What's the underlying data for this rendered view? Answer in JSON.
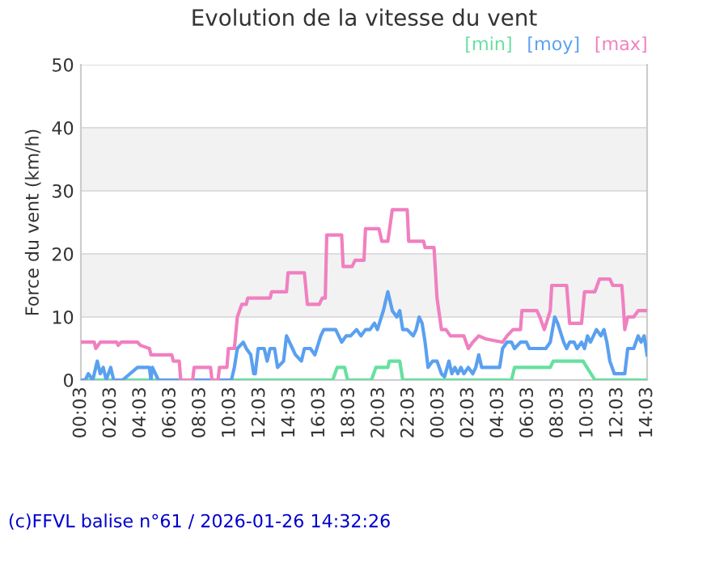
{
  "chart_data": {
    "type": "line",
    "title": "Evolution de la vitesse du vent",
    "ylabel": "Force du vent (km/h)",
    "annotations": [
      "(c)FFVL balise n°61 / 2026-01-26 14:32:26"
    ],
    "xlim": [
      "2026-01-25T00:03",
      "2026-01-26T14:03"
    ],
    "xticks": [
      {
        "value": "2026-01-25T00:03",
        "label": "00:03"
      },
      {
        "value": "2026-01-25T02:03",
        "label": "02:03"
      },
      {
        "value": "2026-01-25T04:03",
        "label": "04:03"
      },
      {
        "value": "2026-01-25T06:03",
        "label": "06:03"
      },
      {
        "value": "2026-01-25T08:03",
        "label": "08:03"
      },
      {
        "value": "2026-01-25T10:03",
        "label": "10:03"
      },
      {
        "value": "2026-01-25T12:03",
        "label": "12:03"
      },
      {
        "value": "2026-01-25T14:03",
        "label": "14:03"
      },
      {
        "value": "2026-01-25T16:03",
        "label": "16:03"
      },
      {
        "value": "2026-01-25T18:03",
        "label": "18:03"
      },
      {
        "value": "2026-01-25T20:03",
        "label": "20:03"
      },
      {
        "value": "2026-01-25T22:03",
        "label": "22:03"
      },
      {
        "value": "2026-01-26T00:03",
        "label": "00:03"
      },
      {
        "value": "2026-01-26T02:03",
        "label": "02:03"
      },
      {
        "value": "2026-01-26T04:03",
        "label": "04:03"
      },
      {
        "value": "2026-01-26T06:03",
        "label": "06:03"
      },
      {
        "value": "2026-01-26T08:03",
        "label": "08:03"
      },
      {
        "value": "2026-01-26T10:03",
        "label": "10:03"
      },
      {
        "value": "2026-01-26T12:03",
        "label": "12:03"
      },
      {
        "value": "2026-01-26T14:03",
        "label": "14:03"
      }
    ],
    "ylim": [
      0,
      50
    ],
    "yticks": [
      0,
      10,
      20,
      30,
      40,
      50
    ],
    "grid": "y",
    "legend": "top right",
    "bands": [
      {
        "axis": "y",
        "from": 10,
        "to": 20,
        "color": "#f2f2f2"
      },
      {
        "axis": "y",
        "from": 30,
        "to": 40,
        "color": "#f2f2f2"
      }
    ],
    "series": [
      {
        "name": "[min]",
        "color": "#66e0a0",
        "x": [
          "2026-01-25T00:03",
          "2026-01-25T16:57",
          "2026-01-25T17:15",
          "2026-01-25T17:45",
          "2026-01-25T17:57",
          "2026-01-25T19:33",
          "2026-01-25T19:51",
          "2026-01-25T20:39",
          "2026-01-25T20:45",
          "2026-01-25T21:27",
          "2026-01-25T21:39",
          "2026-01-26T04:57",
          "2026-01-26T05:09",
          "2026-01-26T07:33",
          "2026-01-26T07:45",
          "2026-01-26T09:45",
          "2026-01-26T10:33",
          "2026-01-26T14:03"
        ],
        "values": [
          0,
          0,
          2,
          2,
          0,
          0,
          2,
          2,
          3,
          3,
          0,
          0,
          2,
          2,
          3,
          3,
          0,
          0
        ]
      },
      {
        "name": "[moy]",
        "color": "#5aa0f0",
        "x": [
          "2026-01-25T00:03",
          "2026-01-25T00:21",
          "2026-01-25T00:33",
          "2026-01-25T00:51",
          "2026-01-25T01:09",
          "2026-01-25T01:21",
          "2026-01-25T01:33",
          "2026-01-25T01:45",
          "2026-01-25T02:03",
          "2026-01-25T02:15",
          "2026-01-25T02:51",
          "2026-01-25T03:51",
          "2026-01-25T04:39",
          "2026-01-25T04:45",
          "2026-01-25T04:51",
          "2026-01-25T05:03",
          "2026-01-25T05:15",
          "2026-01-25T10:09",
          "2026-01-25T10:21",
          "2026-01-25T10:33",
          "2026-01-25T10:57",
          "2026-01-25T11:09",
          "2026-01-25T11:27",
          "2026-01-25T11:39",
          "2026-01-25T11:45",
          "2026-01-25T11:57",
          "2026-01-25T12:21",
          "2026-01-25T12:33",
          "2026-01-25T12:45",
          "2026-01-25T13:03",
          "2026-01-25T13:15",
          "2026-01-25T13:39",
          "2026-01-25T13:51",
          "2026-01-25T14:03",
          "2026-01-25T14:15",
          "2026-01-25T14:27",
          "2026-01-25T14:51",
          "2026-01-25T15:03",
          "2026-01-25T15:27",
          "2026-01-25T15:45",
          "2026-01-25T16:09",
          "2026-01-25T16:21",
          "2026-01-25T17:09",
          "2026-01-25T17:21",
          "2026-01-25T17:33",
          "2026-01-25T17:51",
          "2026-01-25T18:09",
          "2026-01-25T18:33",
          "2026-01-25T18:51",
          "2026-01-25T19:09",
          "2026-01-25T19:27",
          "2026-01-25T19:45",
          "2026-01-25T19:57",
          "2026-01-25T20:21",
          "2026-01-25T20:39",
          "2026-01-25T20:57",
          "2026-01-25T21:15",
          "2026-01-25T21:27",
          "2026-01-25T21:39",
          "2026-01-25T21:57",
          "2026-01-25T22:21",
          "2026-01-25T22:33",
          "2026-01-25T22:45",
          "2026-01-25T22:57",
          "2026-01-25T23:09",
          "2026-01-25T23:21",
          "2026-01-25T23:39",
          "2026-01-25T23:57",
          "2026-01-26T00:15",
          "2026-01-26T00:27",
          "2026-01-26T00:45",
          "2026-01-26T00:57",
          "2026-01-26T01:09",
          "2026-01-26T01:21",
          "2026-01-26T01:33",
          "2026-01-26T01:45",
          "2026-01-26T02:03",
          "2026-01-26T02:21",
          "2026-01-26T02:33",
          "2026-01-26T02:45",
          "2026-01-26T02:57",
          "2026-01-26T04:09",
          "2026-01-26T04:21",
          "2026-01-26T04:39",
          "2026-01-26T04:57",
          "2026-01-26T05:09",
          "2026-01-26T05:33",
          "2026-01-26T05:57",
          "2026-01-26T06:09",
          "2026-01-26T07:15",
          "2026-01-26T07:33",
          "2026-01-26T07:51",
          "2026-01-26T08:03",
          "2026-01-26T08:27",
          "2026-01-26T08:39",
          "2026-01-26T08:51",
          "2026-01-26T09:09",
          "2026-01-26T09:21",
          "2026-01-26T09:39",
          "2026-01-26T09:51",
          "2026-01-26T10:03",
          "2026-01-26T10:15",
          "2026-01-26T10:27",
          "2026-01-26T10:39",
          "2026-01-26T10:57",
          "2026-01-26T11:09",
          "2026-01-26T11:21",
          "2026-01-26T11:33",
          "2026-01-26T11:51",
          "2026-01-26T12:33",
          "2026-01-26T12:45",
          "2026-01-26T13:09",
          "2026-01-26T13:27",
          "2026-01-26T13:39",
          "2026-01-26T13:51",
          "2026-01-26T14:03"
        ],
        "values": [
          0,
          0,
          1,
          0,
          3,
          1,
          2,
          0,
          2,
          0,
          0,
          2,
          2,
          0,
          2,
          1,
          0,
          0,
          2,
          5,
          6,
          5,
          4,
          1,
          1,
          5,
          5,
          3,
          5,
          5,
          2,
          3,
          7,
          6,
          5,
          4,
          3,
          5,
          5,
          4,
          7,
          8,
          8,
          7,
          6,
          7,
          7,
          8,
          7,
          8,
          8,
          9,
          8,
          11,
          14,
          11,
          10,
          11,
          8,
          8,
          7,
          8,
          10,
          9,
          6,
          2,
          3,
          3,
          1,
          0.5,
          3,
          1,
          2,
          1,
          2,
          1,
          2,
          1,
          2,
          4,
          2,
          2,
          5,
          6,
          6,
          5,
          6,
          6,
          5,
          5,
          6,
          10,
          9,
          6,
          5,
          6,
          6,
          5,
          6,
          5,
          7,
          6,
          7,
          8,
          7,
          8,
          6,
          3,
          1,
          1,
          5,
          5,
          7,
          6,
          7,
          4
        ]
      },
      {
        "name": "[max]",
        "color": "#f080c0",
        "x": [
          "2026-01-25T00:03",
          "2026-01-25T00:57",
          "2026-01-25T01:03",
          "2026-01-25T01:21",
          "2026-01-25T02:27",
          "2026-01-25T02:33",
          "2026-01-25T02:45",
          "2026-01-25T03:51",
          "2026-01-25T04:03",
          "2026-01-25T04:39",
          "2026-01-25T04:45",
          "2026-01-25T06:09",
          "2026-01-25T06:15",
          "2026-01-25T06:39",
          "2026-01-25T06:45",
          "2026-01-25T07:33",
          "2026-01-25T07:39",
          "2026-01-25T08:45",
          "2026-01-25T08:51",
          "2026-01-25T09:15",
          "2026-01-25T09:21",
          "2026-01-25T09:51",
          "2026-01-25T09:57",
          "2026-01-25T10:21",
          "2026-01-25T10:33",
          "2026-01-25T10:51",
          "2026-01-25T11:09",
          "2026-01-25T11:15",
          "2026-01-25T12:45",
          "2026-01-25T12:51",
          "2026-01-25T13:51",
          "2026-01-25T13:57",
          "2026-01-25T15:03",
          "2026-01-25T15:15",
          "2026-01-25T16:03",
          "2026-01-25T16:15",
          "2026-01-25T16:27",
          "2026-01-25T16:33",
          "2026-01-25T17:33",
          "2026-01-25T17:39",
          "2026-01-25T18:15",
          "2026-01-25T18:27",
          "2026-01-25T19:03",
          "2026-01-25T19:09",
          "2026-01-25T20:03",
          "2026-01-25T20:15",
          "2026-01-25T20:39",
          "2026-01-25T20:57",
          "2026-01-25T21:57",
          "2026-01-25T22:03",
          "2026-01-25T23:03",
          "2026-01-25T23:09",
          "2026-01-25T23:45",
          "2026-01-25T23:57",
          "2026-01-26T00:15",
          "2026-01-26T00:33",
          "2026-01-26T00:51",
          "2026-01-26T01:45",
          "2026-01-26T02:03",
          "2026-01-26T02:21",
          "2026-01-26T02:45",
          "2026-01-26T03:15",
          "2026-01-26T04:21",
          "2026-01-26T04:39",
          "2026-01-26T05:03",
          "2026-01-26T05:33",
          "2026-01-26T05:39",
          "2026-01-26T06:39",
          "2026-01-26T06:51",
          "2026-01-26T07:09",
          "2026-01-26T07:33",
          "2026-01-26T07:39",
          "2026-01-26T08:39",
          "2026-01-26T08:51",
          "2026-01-26T09:39",
          "2026-01-26T09:51",
          "2026-01-26T10:33",
          "2026-01-26T10:51",
          "2026-01-26T11:33",
          "2026-01-26T11:45",
          "2026-01-26T12:21",
          "2026-01-26T12:27",
          "2026-01-26T12:33",
          "2026-01-26T12:45",
          "2026-01-26T13:09",
          "2026-01-26T13:27",
          "2026-01-26T14:03"
        ],
        "values": [
          6,
          6,
          5,
          6,
          6,
          5.5,
          6,
          6,
          5.5,
          5,
          4,
          4,
          3,
          3,
          0,
          0,
          2,
          2,
          0,
          0,
          2,
          2,
          5,
          5,
          10,
          12,
          12,
          13,
          13,
          14,
          14,
          17,
          17,
          12,
          12,
          13,
          13,
          23,
          23,
          18,
          18,
          19,
          19,
          24,
          24,
          22,
          22,
          27,
          27,
          22,
          22,
          21,
          21,
          13,
          8,
          8,
          7,
          7,
          5,
          6,
          7,
          6.5,
          6,
          7,
          8,
          8,
          11,
          11,
          10,
          8,
          11,
          15,
          15,
          9,
          9,
          14,
          14,
          16,
          16,
          15,
          15,
          12,
          8,
          10,
          10,
          11,
          11
        ]
      }
    ]
  }
}
